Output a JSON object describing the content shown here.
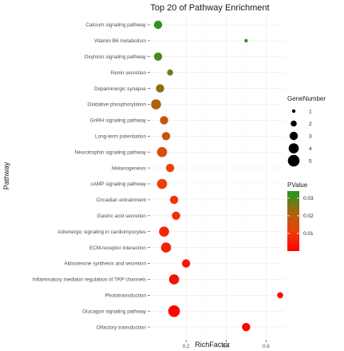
{
  "chart_data": {
    "type": "scatter",
    "title": "Top 20 of Pathway Enrichment",
    "xlabel": "RichFactor",
    "ylabel": "Pathway",
    "xlim": [
      0.02,
      0.69
    ],
    "xticks": [
      0.2,
      0.4,
      0.6
    ],
    "xtick_labels": [
      "0.2",
      "0.4",
      "0.6"
    ],
    "grid": true,
    "legend_position": "right",
    "points": [
      {
        "pathway": "Calcium signaling pathway",
        "rich_factor": 0.06,
        "gene_number": 3,
        "pvalue": 0.033
      },
      {
        "pathway": "Vitamin B6 metabolism",
        "rich_factor": 0.5,
        "gene_number": 1,
        "pvalue": 0.032
      },
      {
        "pathway": "Oxytocin signaling pathway",
        "rich_factor": 0.06,
        "gene_number": 3,
        "pvalue": 0.03
      },
      {
        "pathway": "Renin secretion",
        "rich_factor": 0.12,
        "gene_number": 2,
        "pvalue": 0.027
      },
      {
        "pathway": "Dopaminergic synapse",
        "rich_factor": 0.07,
        "gene_number": 3,
        "pvalue": 0.025
      },
      {
        "pathway": "Oxidative phosphorylation",
        "rich_factor": 0.05,
        "gene_number": 4,
        "pvalue": 0.021
      },
      {
        "pathway": "GnRH signaling pathway",
        "rich_factor": 0.09,
        "gene_number": 3,
        "pvalue": 0.018
      },
      {
        "pathway": "Long-term potentiation",
        "rich_factor": 0.1,
        "gene_number": 3,
        "pvalue": 0.017
      },
      {
        "pathway": "Neurotrophin signaling pathway",
        "rich_factor": 0.08,
        "gene_number": 4,
        "pvalue": 0.014
      },
      {
        "pathway": "Melanogenesis",
        "rich_factor": 0.12,
        "gene_number": 3,
        "pvalue": 0.012
      },
      {
        "pathway": "cAMP signaling pathway",
        "rich_factor": 0.08,
        "gene_number": 4,
        "pvalue": 0.011
      },
      {
        "pathway": "Circadian entrainment",
        "rich_factor": 0.14,
        "gene_number": 3,
        "pvalue": 0.009
      },
      {
        "pathway": "Gastric acid secretion",
        "rich_factor": 0.15,
        "gene_number": 3,
        "pvalue": 0.008
      },
      {
        "pathway": "Adrenergic signaling in cardiomyocytes",
        "rich_factor": 0.09,
        "gene_number": 4,
        "pvalue": 0.007
      },
      {
        "pathway": "ECM-receptor interaction",
        "rich_factor": 0.1,
        "gene_number": 4,
        "pvalue": 0.006
      },
      {
        "pathway": "Aldosterone synthesis and secretion",
        "rich_factor": 0.2,
        "gene_number": 3,
        "pvalue": 0.004
      },
      {
        "pathway": "Inflammatory mediator regulation of TRP channels",
        "rich_factor": 0.14,
        "gene_number": 4,
        "pvalue": 0.003
      },
      {
        "pathway": "Phototransduction",
        "rich_factor": 0.67,
        "gene_number": 2,
        "pvalue": 0.002
      },
      {
        "pathway": "Glucagon signaling pathway",
        "rich_factor": 0.14,
        "gene_number": 5,
        "pvalue": 0.001
      },
      {
        "pathway": "Olfactory transduction",
        "rich_factor": 0.5,
        "gene_number": 3,
        "pvalue": 0.0005
      }
    ],
    "size_legend": {
      "title": "GeneNumber",
      "values": [
        1,
        2,
        3,
        4,
        5
      ],
      "labels": [
        "1",
        "2",
        "3",
        "4",
        "5"
      ]
    },
    "color_legend": {
      "title": "PValue",
      "range": [
        0.0,
        0.034
      ],
      "ticks": [
        0.01,
        0.02,
        0.03
      ],
      "tick_labels": [
        "0.01",
        "0.02",
        "0.03"
      ],
      "low_color": "#ff0000",
      "high_color": "#1f9a1f"
    }
  }
}
